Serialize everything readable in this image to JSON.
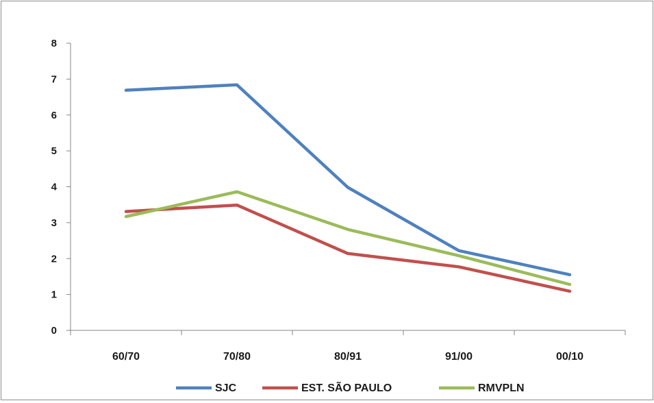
{
  "chart_data": {
    "type": "line",
    "categories": [
      "60/70",
      "70/80",
      "80/91",
      "91/00",
      "00/10"
    ],
    "ylim": [
      0,
      8
    ],
    "yticks": [
      0,
      1,
      2,
      3,
      4,
      5,
      6,
      7,
      8
    ],
    "grid": false,
    "legend_position": "bottom",
    "title": "",
    "xlabel": "",
    "ylabel": "",
    "series": [
      {
        "name": "SJC",
        "color": "#4F81BD",
        "values": [
          6.69,
          6.84,
          3.98,
          2.22,
          1.55
        ]
      },
      {
        "name": "EST. SÃO PAULO",
        "color": "#C0504D",
        "values": [
          3.31,
          3.49,
          2.14,
          1.77,
          1.09
        ]
      },
      {
        "name": "RMVPLN",
        "color": "#9BBB59",
        "values": [
          3.17,
          3.86,
          2.81,
          2.08,
          1.28
        ]
      }
    ]
  }
}
